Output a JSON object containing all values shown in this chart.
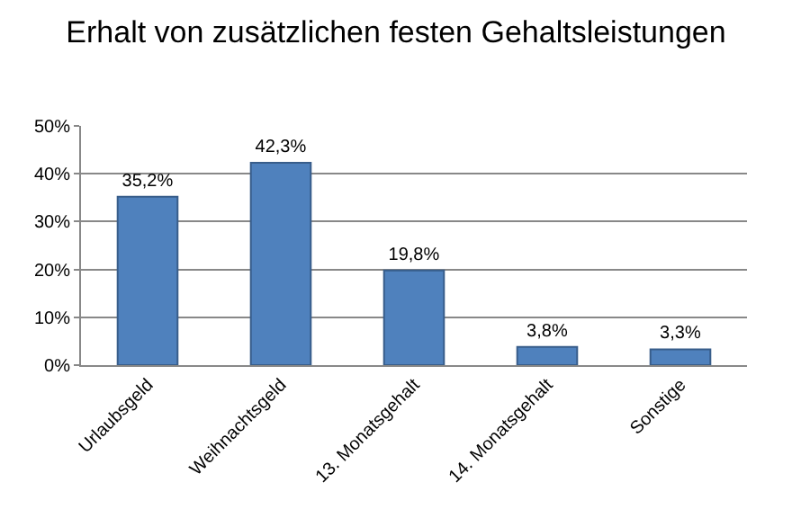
{
  "chart_data": {
    "type": "bar",
    "title": "Erhalt von zusätzlichen festen Gehaltsleistungen",
    "categories": [
      "Urlaubsgeld",
      "Weihnachtsgeld",
      "13. Monatsgehalt",
      "14. Monatsgehalt",
      "Sonstige"
    ],
    "values": [
      35.2,
      42.3,
      19.8,
      3.8,
      3.3
    ],
    "value_labels": [
      "35,2%",
      "42,3%",
      "19,8%",
      "3,8%",
      "3,3%"
    ],
    "color": "#4f81bd",
    "ylim": [
      0,
      50
    ],
    "yticks": [
      {
        "value": 0,
        "label": "0%"
      },
      {
        "value": 10,
        "label": "10%"
      },
      {
        "value": 20,
        "label": "20%"
      },
      {
        "value": 30,
        "label": "30%"
      },
      {
        "value": 40,
        "label": "40%"
      },
      {
        "value": 50,
        "label": "50%"
      }
    ],
    "grid": "y",
    "legend": false
  }
}
